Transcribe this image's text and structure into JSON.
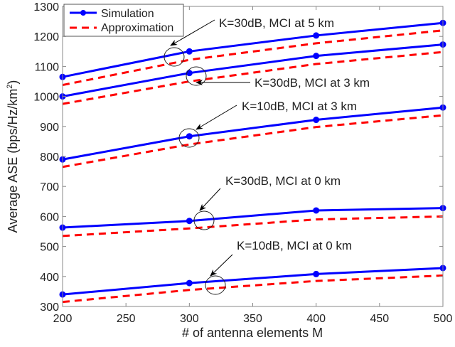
{
  "chart_data": {
    "type": "line",
    "title": "",
    "xlabel": "# of antenna elements M",
    "ylabel": "Average ASE (bps/Hz/km",
    "ylabel_sup": "2",
    "ylabel_end": ")",
    "xlim": [
      200,
      500
    ],
    "ylim": [
      300,
      1300
    ],
    "xticks": [
      200,
      250,
      300,
      350,
      400,
      450,
      500
    ],
    "yticks": [
      300,
      400,
      500,
      600,
      700,
      800,
      900,
      1000,
      1100,
      1200,
      1300
    ],
    "grid": false,
    "legend": {
      "placement": "top-left",
      "entries": [
        "Simulation",
        "Approximation"
      ]
    },
    "x": [
      200,
      300,
      400,
      500
    ],
    "colors": {
      "simulation": "#0000ff",
      "approximation": "#ff0000"
    },
    "groups": [
      {
        "label": "K=30dB, MCI at 5 km",
        "simulation": [
          1065,
          1150,
          1203,
          1245
        ],
        "approximation": [
          1038,
          1122,
          1177,
          1220
        ]
      },
      {
        "label": "K=30dB, MCI at 3 km",
        "simulation": [
          1000,
          1078,
          1135,
          1173
        ],
        "approximation": [
          975,
          1050,
          1108,
          1148
        ]
      },
      {
        "label": "K=10dB, MCI at 3 km",
        "simulation": [
          790,
          867,
          922,
          963
        ],
        "approximation": [
          765,
          840,
          898,
          937
        ]
      },
      {
        "label": "K=30dB, MCI at 0 km",
        "simulation": [
          563,
          585,
          620,
          628
        ],
        "approximation": [
          535,
          560,
          590,
          600
        ]
      },
      {
        "label": "K=10dB, MCI at 0 km",
        "simulation": [
          340,
          378,
          408,
          428
        ],
        "approximation": [
          315,
          355,
          385,
          403
        ]
      }
    ]
  }
}
